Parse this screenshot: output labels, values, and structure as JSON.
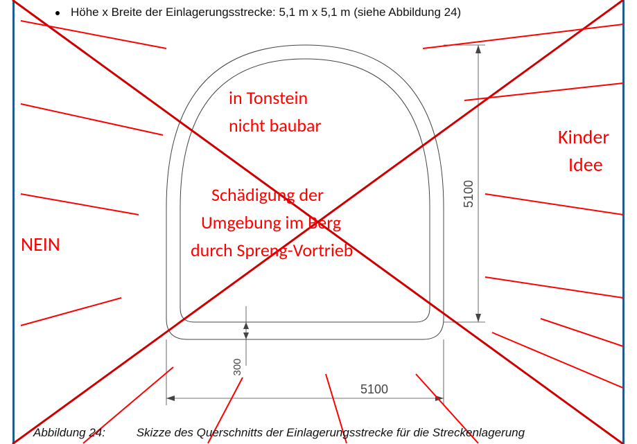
{
  "header": {
    "bullet_text": "Höhe x Breite der Einlagerungsstrecke: 5,1 m x 5,1 m (siehe Abbildung 24)"
  },
  "caption": {
    "label": "Abbildung 24:",
    "text": "Skizze des Querschnitts der Einlagerungsstrecke für die Streckenlagerung"
  },
  "tunnel": {
    "dim_width_label": "5100",
    "dim_height_label": "5100",
    "dim_floor_label": "300",
    "line_color": "#444444",
    "line_width": 1,
    "dim_line_width": 0.8,
    "bg": "#ffffff"
  },
  "annotations": {
    "color": "#ff0000",
    "big_x_color": "#cc0000",
    "line_width": 2,
    "cross_line_width": 3,
    "nein": "NEIN",
    "kinder": "Kinder",
    "idee": "Idee",
    "tonstein1": "in Tonstein",
    "tonstein2": "nicht baubar",
    "schaedigung1": "Schädigung der",
    "schaedigung2": "Umgebung im Berg",
    "schaedigung3": "durch Spreng-Vortrieb",
    "font_big": 28,
    "font_main": 26
  },
  "page_border_color": "#1f5c8a",
  "page_border_width": 3
}
